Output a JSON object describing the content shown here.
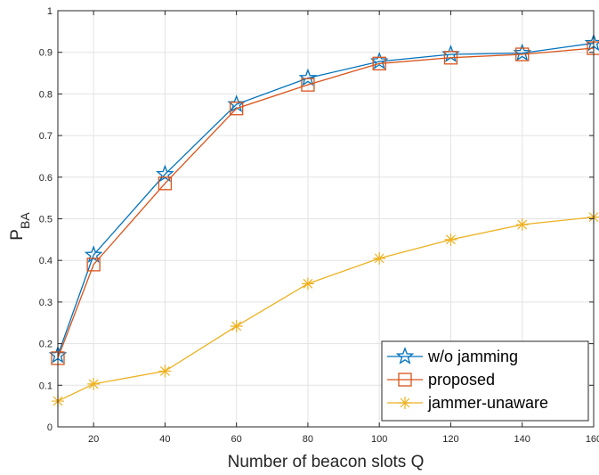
{
  "chart_data": {
    "type": "line",
    "xlabel": "Number of beacon slots Q",
    "ylabel_main": "P",
    "ylabel_sub": "BA",
    "xlim": [
      10,
      160
    ],
    "ylim": [
      0,
      1
    ],
    "xticks": [
      20,
      40,
      60,
      80,
      100,
      120,
      140,
      160
    ],
    "xtick_labels": [
      "20",
      "40",
      "60",
      "80",
      "100",
      "120",
      "140",
      "160"
    ],
    "yticks": [
      0,
      0.1,
      0.2,
      0.3,
      0.4,
      0.5,
      0.6,
      0.7,
      0.8,
      0.9,
      1
    ],
    "ytick_labels": [
      "0",
      "0.1",
      "0.2",
      "0.3",
      "0.4",
      "0.5",
      "0.6",
      "0.7",
      "0.8",
      "0.9",
      "1"
    ],
    "grid": true,
    "legend_position": "bottom-right",
    "x": [
      10,
      20,
      40,
      60,
      80,
      100,
      120,
      140,
      160
    ],
    "series": [
      {
        "name": "w/o jamming",
        "color": "#0072BD",
        "marker": "pentagram",
        "values": [
          0.172,
          0.413,
          0.607,
          0.775,
          0.838,
          0.878,
          0.895,
          0.898,
          0.922
        ]
      },
      {
        "name": "proposed",
        "color": "#D95319",
        "marker": "square",
        "values": [
          0.165,
          0.39,
          0.585,
          0.765,
          0.822,
          0.873,
          0.887,
          0.895,
          0.91
        ]
      },
      {
        "name": "jammer-unaware",
        "color": "#EDB120",
        "marker": "asterisk",
        "values": [
          0.062,
          0.103,
          0.134,
          0.242,
          0.344,
          0.405,
          0.45,
          0.486,
          0.504
        ]
      }
    ]
  }
}
